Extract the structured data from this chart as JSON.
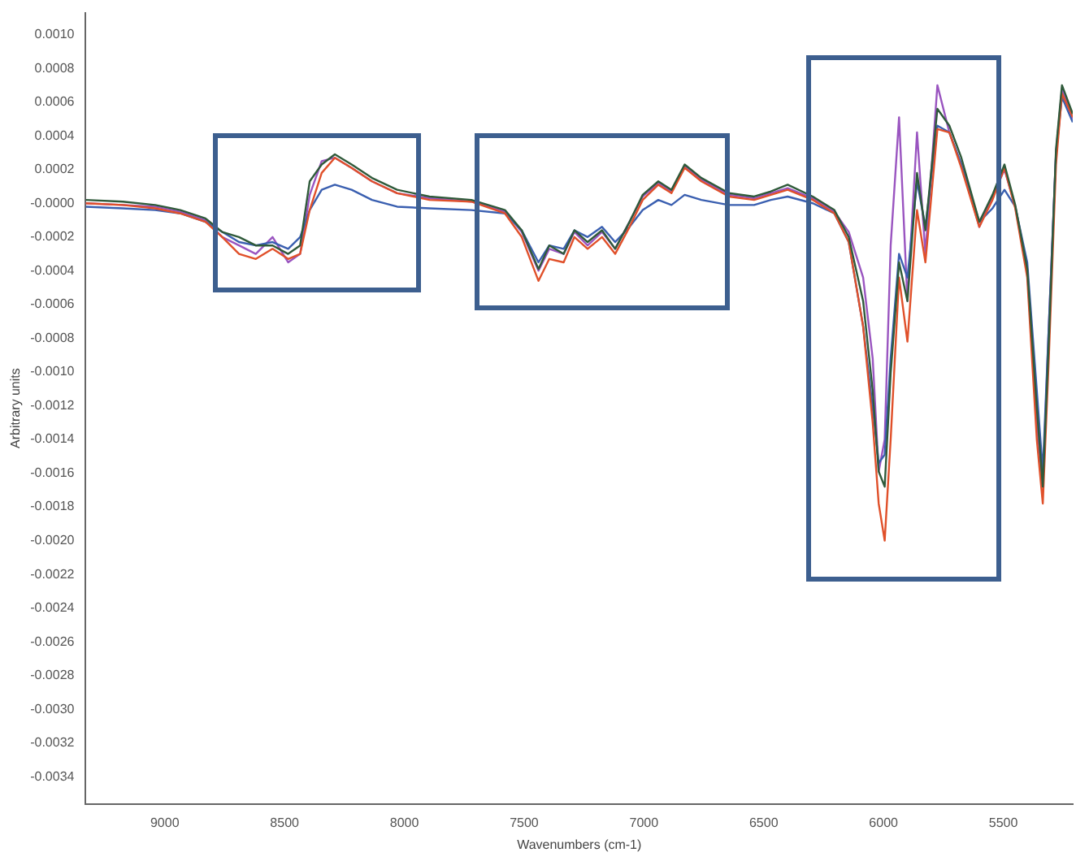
{
  "chart_data": {
    "type": "line",
    "xlabel": "Wavenumbers (cm-1)",
    "ylabel": "Arbitrary units",
    "x": [
      9330,
      9175,
      9040,
      8935,
      8830,
      8760,
      8690,
      8620,
      8550,
      8485,
      8435,
      8395,
      8345,
      8290,
      8220,
      8135,
      8030,
      7895,
      7720,
      7580,
      7510,
      7440,
      7395,
      7335,
      7290,
      7235,
      7175,
      7120,
      7060,
      7005,
      6940,
      6885,
      6830,
      6760,
      6645,
      6540,
      6470,
      6400,
      6295,
      6205,
      6145,
      6085,
      6045,
      6020,
      5995,
      5970,
      5935,
      5900,
      5860,
      5825,
      5775,
      5725,
      5675,
      5600,
      5545,
      5495,
      5450,
      5400,
      5360,
      5335,
      5310,
      5280,
      5255,
      5210
    ],
    "series": [
      {
        "color": "#2f5a3a",
        "values": [
          2e-05,
          1e-05,
          -1e-05,
          -4e-05,
          -9e-05,
          -0.00017,
          -0.0002,
          -0.00025,
          -0.00025,
          -0.0003,
          -0.00025,
          0.00013,
          0.00023,
          0.00029,
          0.00023,
          0.00015,
          8e-05,
          4e-05,
          2e-05,
          -4e-05,
          -0.00016,
          -0.00039,
          -0.00025,
          -0.0003,
          -0.00016,
          -0.00023,
          -0.00016,
          -0.00027,
          -0.00011,
          5e-05,
          0.00013,
          8e-05,
          0.00023,
          0.00015,
          6e-05,
          4e-05,
          7e-05,
          0.00011,
          4e-05,
          -4e-05,
          -0.0002,
          -0.00058,
          -0.00111,
          -0.00159,
          -0.00168,
          -0.00101,
          -0.00035,
          -0.00058,
          0.00018,
          -0.00016,
          0.00056,
          0.00046,
          0.00027,
          -0.00011,
          5e-05,
          0.00023,
          -1e-05,
          -0.00039,
          -0.00121,
          -0.00168,
          -0.00082,
          0.00032,
          0.0007,
          0.00053
        ]
      },
      {
        "color": "#e0502a",
        "values": [
          0,
          -1e-05,
          -3e-05,
          -6e-05,
          -0.00011,
          -0.0002,
          -0.0003,
          -0.00033,
          -0.00027,
          -0.00033,
          -0.0003,
          -4e-05,
          0.00018,
          0.00027,
          0.00021,
          0.00013,
          6e-05,
          2e-05,
          1e-05,
          -6e-05,
          -0.0002,
          -0.00046,
          -0.00033,
          -0.00035,
          -0.0002,
          -0.00027,
          -0.0002,
          -0.0003,
          -0.00014,
          2e-05,
          0.00011,
          6e-05,
          0.00021,
          0.00013,
          4e-05,
          2e-05,
          5e-05,
          8e-05,
          2e-05,
          -6e-05,
          -0.00023,
          -0.00073,
          -0.0013,
          -0.00178,
          -0.002,
          -0.0014,
          -0.00044,
          -0.00082,
          -4e-05,
          -0.00035,
          0.00044,
          0.00042,
          0.00021,
          -0.00014,
          2e-05,
          0.00021,
          -3e-05,
          -0.00044,
          -0.0014,
          -0.00178,
          -0.00092,
          0.00023,
          0.00065,
          0.00051
        ]
      },
      {
        "color": "#3a5fb0",
        "values": [
          -2e-05,
          -3e-05,
          -4e-05,
          -6e-05,
          -0.00011,
          -0.00017,
          -0.00023,
          -0.00025,
          -0.00023,
          -0.00027,
          -0.0002,
          -4e-05,
          8e-05,
          0.00011,
          8e-05,
          2e-05,
          -2e-05,
          -3e-05,
          -4e-05,
          -6e-05,
          -0.00016,
          -0.00035,
          -0.00025,
          -0.00027,
          -0.00016,
          -0.0002,
          -0.00014,
          -0.00023,
          -0.00014,
          -4e-05,
          2e-05,
          -1e-05,
          5e-05,
          2e-05,
          -1e-05,
          -1e-05,
          2e-05,
          4e-05,
          0,
          -6e-05,
          -0.00023,
          -0.00073,
          -0.00121,
          -0.00154,
          -0.00149,
          -0.00092,
          -0.0003,
          -0.00044,
          0.00013,
          -0.00014,
          0.00046,
          0.00042,
          0.00023,
          -0.00011,
          -3e-05,
          8e-05,
          -2e-05,
          -0.00035,
          -0.00111,
          -0.00159,
          -0.00073,
          0.00029,
          0.00063,
          0.00048
        ]
      },
      {
        "color": "#9a55c0",
        "values": [
          0,
          -1e-05,
          -2e-05,
          -5e-05,
          -0.0001,
          -0.0002,
          -0.00025,
          -0.0003,
          -0.0002,
          -0.00035,
          -0.0003,
          5e-05,
          0.00025,
          0.00027,
          0.00021,
          0.00013,
          6e-05,
          3e-05,
          1e-05,
          -5e-05,
          -0.00017,
          -0.0004,
          -0.00027,
          -0.0003,
          -0.00017,
          -0.00025,
          -0.00017,
          -0.00027,
          -0.00011,
          4e-05,
          0.00012,
          7e-05,
          0.00022,
          0.00014,
          5e-05,
          3e-05,
          6e-05,
          9e-05,
          3e-05,
          -5e-05,
          -0.00017,
          -0.00044,
          -0.00092,
          -0.00159,
          -0.0014,
          -0.00025,
          0.00051,
          -0.00058,
          0.00042,
          -0.0003,
          0.0007,
          0.00042,
          0.00023,
          -0.00014,
          4e-05,
          0.0002,
          -2e-05,
          -0.0004,
          -0.0013,
          -0.00168,
          -0.00073,
          0.0003,
          0.00068,
          0.0005
        ]
      }
    ],
    "xlim": [
      9330,
      5210
    ],
    "xticks": [
      9000,
      8500,
      8000,
      7500,
      7000,
      6500,
      6000,
      5500
    ],
    "ylim": [
      -0.00356,
      0.00113
    ],
    "yticks": [
      {
        "value": 0.001,
        "label": "0.0010"
      },
      {
        "value": 0.0008,
        "label": "0.0008"
      },
      {
        "value": 0.0006,
        "label": "0.0006"
      },
      {
        "value": 0.0004,
        "label": "0.0004"
      },
      {
        "value": 0.0002,
        "label": "0.0002"
      },
      {
        "value": 0,
        "label": "-0.0000"
      },
      {
        "value": -0.0002,
        "label": "-0.0002"
      },
      {
        "value": -0.0004,
        "label": "-0.0004"
      },
      {
        "value": -0.0006,
        "label": "-0.0006"
      },
      {
        "value": -0.0008,
        "label": "-0.0008"
      },
      {
        "value": -0.001,
        "label": "-0.0010"
      },
      {
        "value": -0.0012,
        "label": "-0.0012"
      },
      {
        "value": -0.0014,
        "label": "-0.0014"
      },
      {
        "value": -0.0016,
        "label": "-0.0016"
      },
      {
        "value": -0.0018,
        "label": "-0.0018"
      },
      {
        "value": -0.002,
        "label": "-0.0020"
      },
      {
        "value": -0.0022,
        "label": "-0.0022"
      },
      {
        "value": -0.0024,
        "label": "-0.0024"
      },
      {
        "value": -0.0026,
        "label": "-0.0026"
      },
      {
        "value": -0.0028,
        "label": "-0.0028"
      },
      {
        "value": -0.003,
        "label": "-0.0030"
      },
      {
        "value": -0.0032,
        "label": "-0.0032"
      },
      {
        "value": -0.0034,
        "label": "-0.0034"
      }
    ]
  }
}
